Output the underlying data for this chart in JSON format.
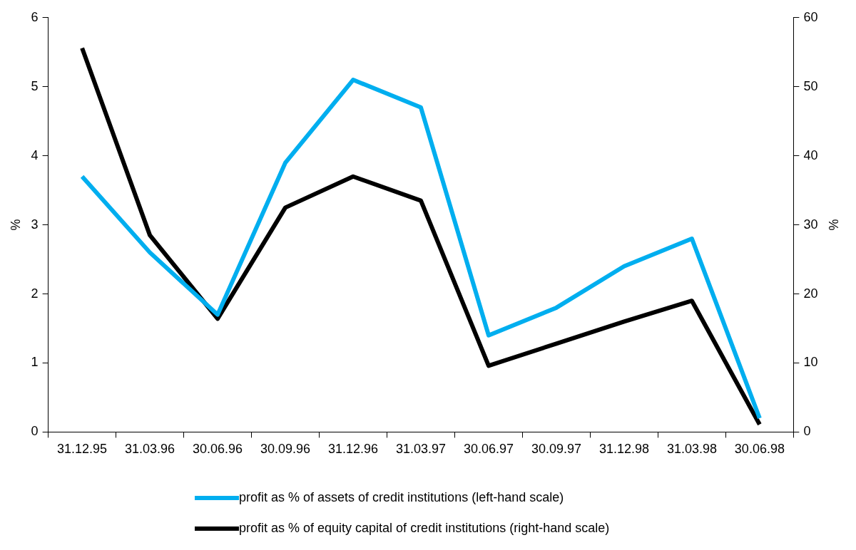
{
  "chart_data": {
    "type": "line",
    "ylabel": "%",
    "y2label": "%",
    "categories": [
      "31.12.95",
      "31.03.96",
      "30.06.96",
      "30.09.96",
      "31.12.96",
      "31.03.97",
      "30.06.97",
      "30.09.97",
      "31.12.98",
      "31.03.98",
      "30.06.98"
    ],
    "series": [
      {
        "name": "profit as % of assets of credit institutions (left-hand scale)",
        "color": "#00aeef",
        "values": [
          3.7,
          2.6,
          1.7,
          3.9,
          5.1,
          4.7,
          1.4,
          1.8,
          2.4,
          2.8,
          0.2
        ]
      },
      {
        "name": "profit as % of equity capital of credit institutions (right-hand scale)",
        "color": "#000000",
        "axis": "y2",
        "values": [
          55.6,
          28.5,
          16.4,
          32.5,
          37,
          33.5,
          9.6,
          12.8,
          16,
          19,
          1.1
        ]
      }
    ],
    "ylim": [
      0,
      6
    ],
    "yticks": [
      0,
      1,
      2,
      3,
      4,
      5,
      6
    ],
    "y2lim": [
      0,
      60
    ],
    "y2ticks": [
      0,
      10,
      20,
      30,
      40,
      50,
      60
    ],
    "grid": false,
    "legend": "bottom",
    "marker": "none",
    "line_style": "solid"
  }
}
